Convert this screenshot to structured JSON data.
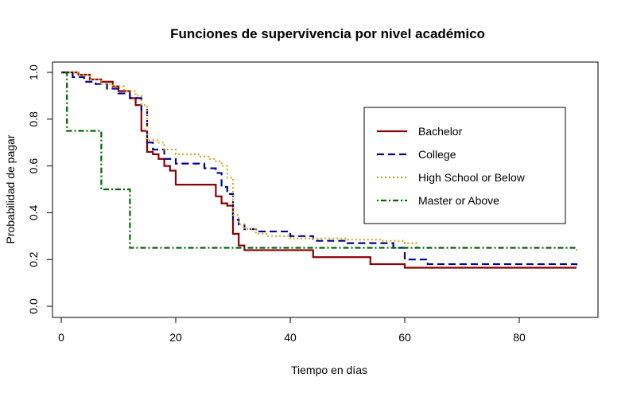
{
  "chart_data": {
    "type": "line",
    "step": true,
    "title": "Funciones de supervivencia por nivel académico",
    "xlabel": "Tiempo en días",
    "ylabel": "Probabilidad de pagar",
    "xlim": [
      0,
      90
    ],
    "ylim": [
      0,
      1
    ],
    "xticks": [
      0,
      20,
      40,
      60,
      80
    ],
    "yticks": [
      0.0,
      0.2,
      0.4,
      0.6,
      0.8,
      1.0
    ],
    "ytick_labels": [
      "0.0",
      "0.2",
      "0.4",
      "0.6",
      "0.8",
      "1.0"
    ],
    "legend_position": "right",
    "grid": false,
    "series": [
      {
        "name": "Bachelor",
        "color": "#8b0000",
        "dash": "solid",
        "x": [
          0,
          3,
          5,
          7,
          9,
          10,
          12,
          13,
          14,
          15,
          16,
          17,
          18,
          19,
          20,
          27,
          28,
          29,
          30,
          31,
          32,
          44,
          54,
          60,
          90
        ],
        "y": [
          1.0,
          0.99,
          0.97,
          0.96,
          0.94,
          0.92,
          0.89,
          0.86,
          0.75,
          0.66,
          0.65,
          0.63,
          0.6,
          0.58,
          0.52,
          0.47,
          0.44,
          0.43,
          0.31,
          0.26,
          0.24,
          0.21,
          0.18,
          0.165,
          0.165
        ]
      },
      {
        "name": "College",
        "color": "#00008b",
        "dash": "dashed",
        "x": [
          0,
          2,
          4,
          6,
          8,
          10,
          12,
          14,
          15,
          16,
          18,
          20,
          25,
          27,
          28,
          29,
          30,
          31,
          32,
          34,
          40,
          44,
          50,
          58,
          60,
          64,
          90
        ],
        "y": [
          1.0,
          0.98,
          0.96,
          0.95,
          0.93,
          0.91,
          0.89,
          0.84,
          0.7,
          0.67,
          0.63,
          0.61,
          0.59,
          0.57,
          0.51,
          0.48,
          0.37,
          0.35,
          0.33,
          0.32,
          0.3,
          0.28,
          0.27,
          0.25,
          0.2,
          0.18,
          0.175
        ]
      },
      {
        "name": "High School or Below",
        "color": "#daa520",
        "dash": "dotted",
        "x": [
          0,
          3,
          5,
          7,
          9,
          11,
          13,
          14,
          15,
          17,
          18,
          20,
          24,
          26,
          27,
          28,
          29,
          30,
          31,
          32,
          34,
          36,
          40,
          50,
          56,
          60,
          62,
          90
        ],
        "y": [
          1.0,
          0.99,
          0.97,
          0.95,
          0.94,
          0.92,
          0.9,
          0.86,
          0.71,
          0.7,
          0.67,
          0.65,
          0.64,
          0.63,
          0.62,
          0.6,
          0.55,
          0.39,
          0.35,
          0.33,
          0.31,
          0.3,
          0.29,
          0.285,
          0.28,
          0.27,
          0.25,
          0.235
        ]
      },
      {
        "name": "Master or Above",
        "color": "#006400",
        "dash": "dotdash",
        "x": [
          0,
          1,
          7,
          12,
          90
        ],
        "y": [
          1.0,
          0.75,
          0.5,
          0.25,
          0.25
        ]
      }
    ]
  }
}
